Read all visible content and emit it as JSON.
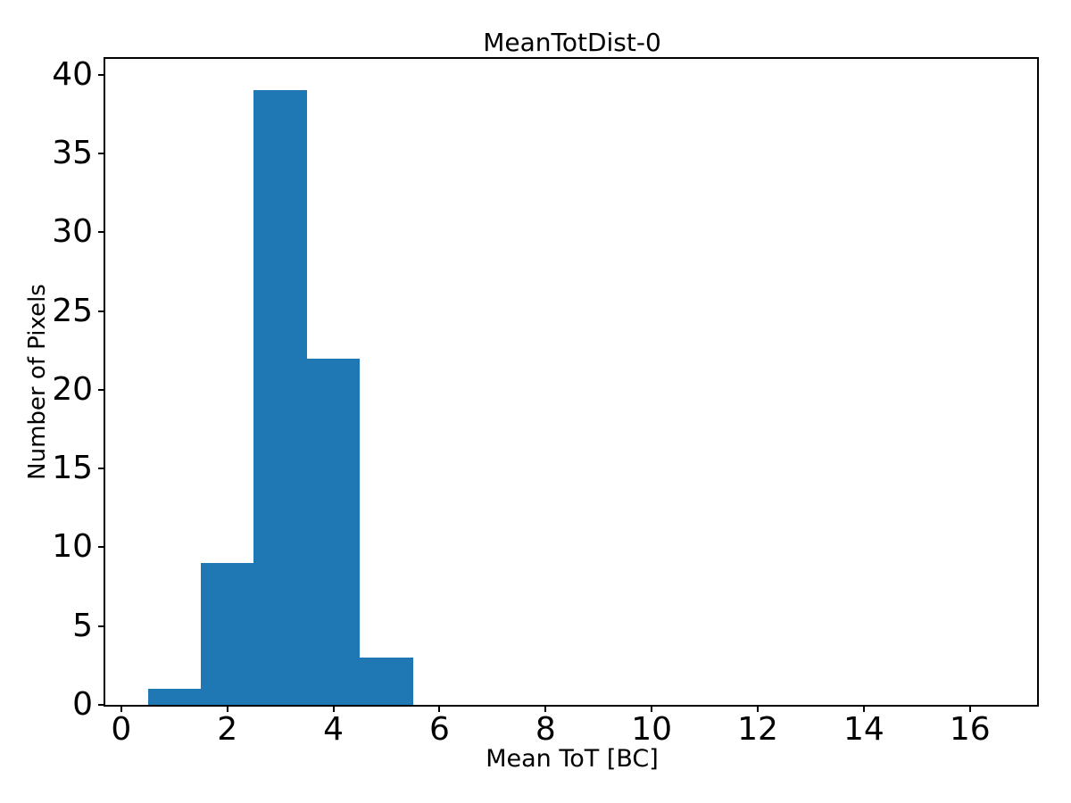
{
  "chart_data": {
    "type": "bar",
    "subtype": "histogram",
    "title": "MeanTotDist-0",
    "xlabel": "Mean ToT [BC]",
    "ylabel": "Number of Pixels",
    "bin_start": 0.5,
    "bin_width": 1,
    "bin_edges": [
      0.5,
      1.5,
      2.5,
      3.5,
      4.5,
      5.5
    ],
    "counts": [
      1,
      9,
      39,
      22,
      3
    ],
    "xticks": [
      0,
      2,
      4,
      6,
      8,
      10,
      12,
      14,
      16
    ],
    "yticks": [
      0,
      5,
      10,
      15,
      20,
      25,
      30,
      35,
      40
    ],
    "xlim": [
      -0.3,
      17.3
    ],
    "ylim": [
      0,
      41
    ],
    "bar_color": "#1f77b4",
    "axis_color": "#000000",
    "background_color": "#ffffff",
    "grid": false,
    "legend_position": "none"
  }
}
